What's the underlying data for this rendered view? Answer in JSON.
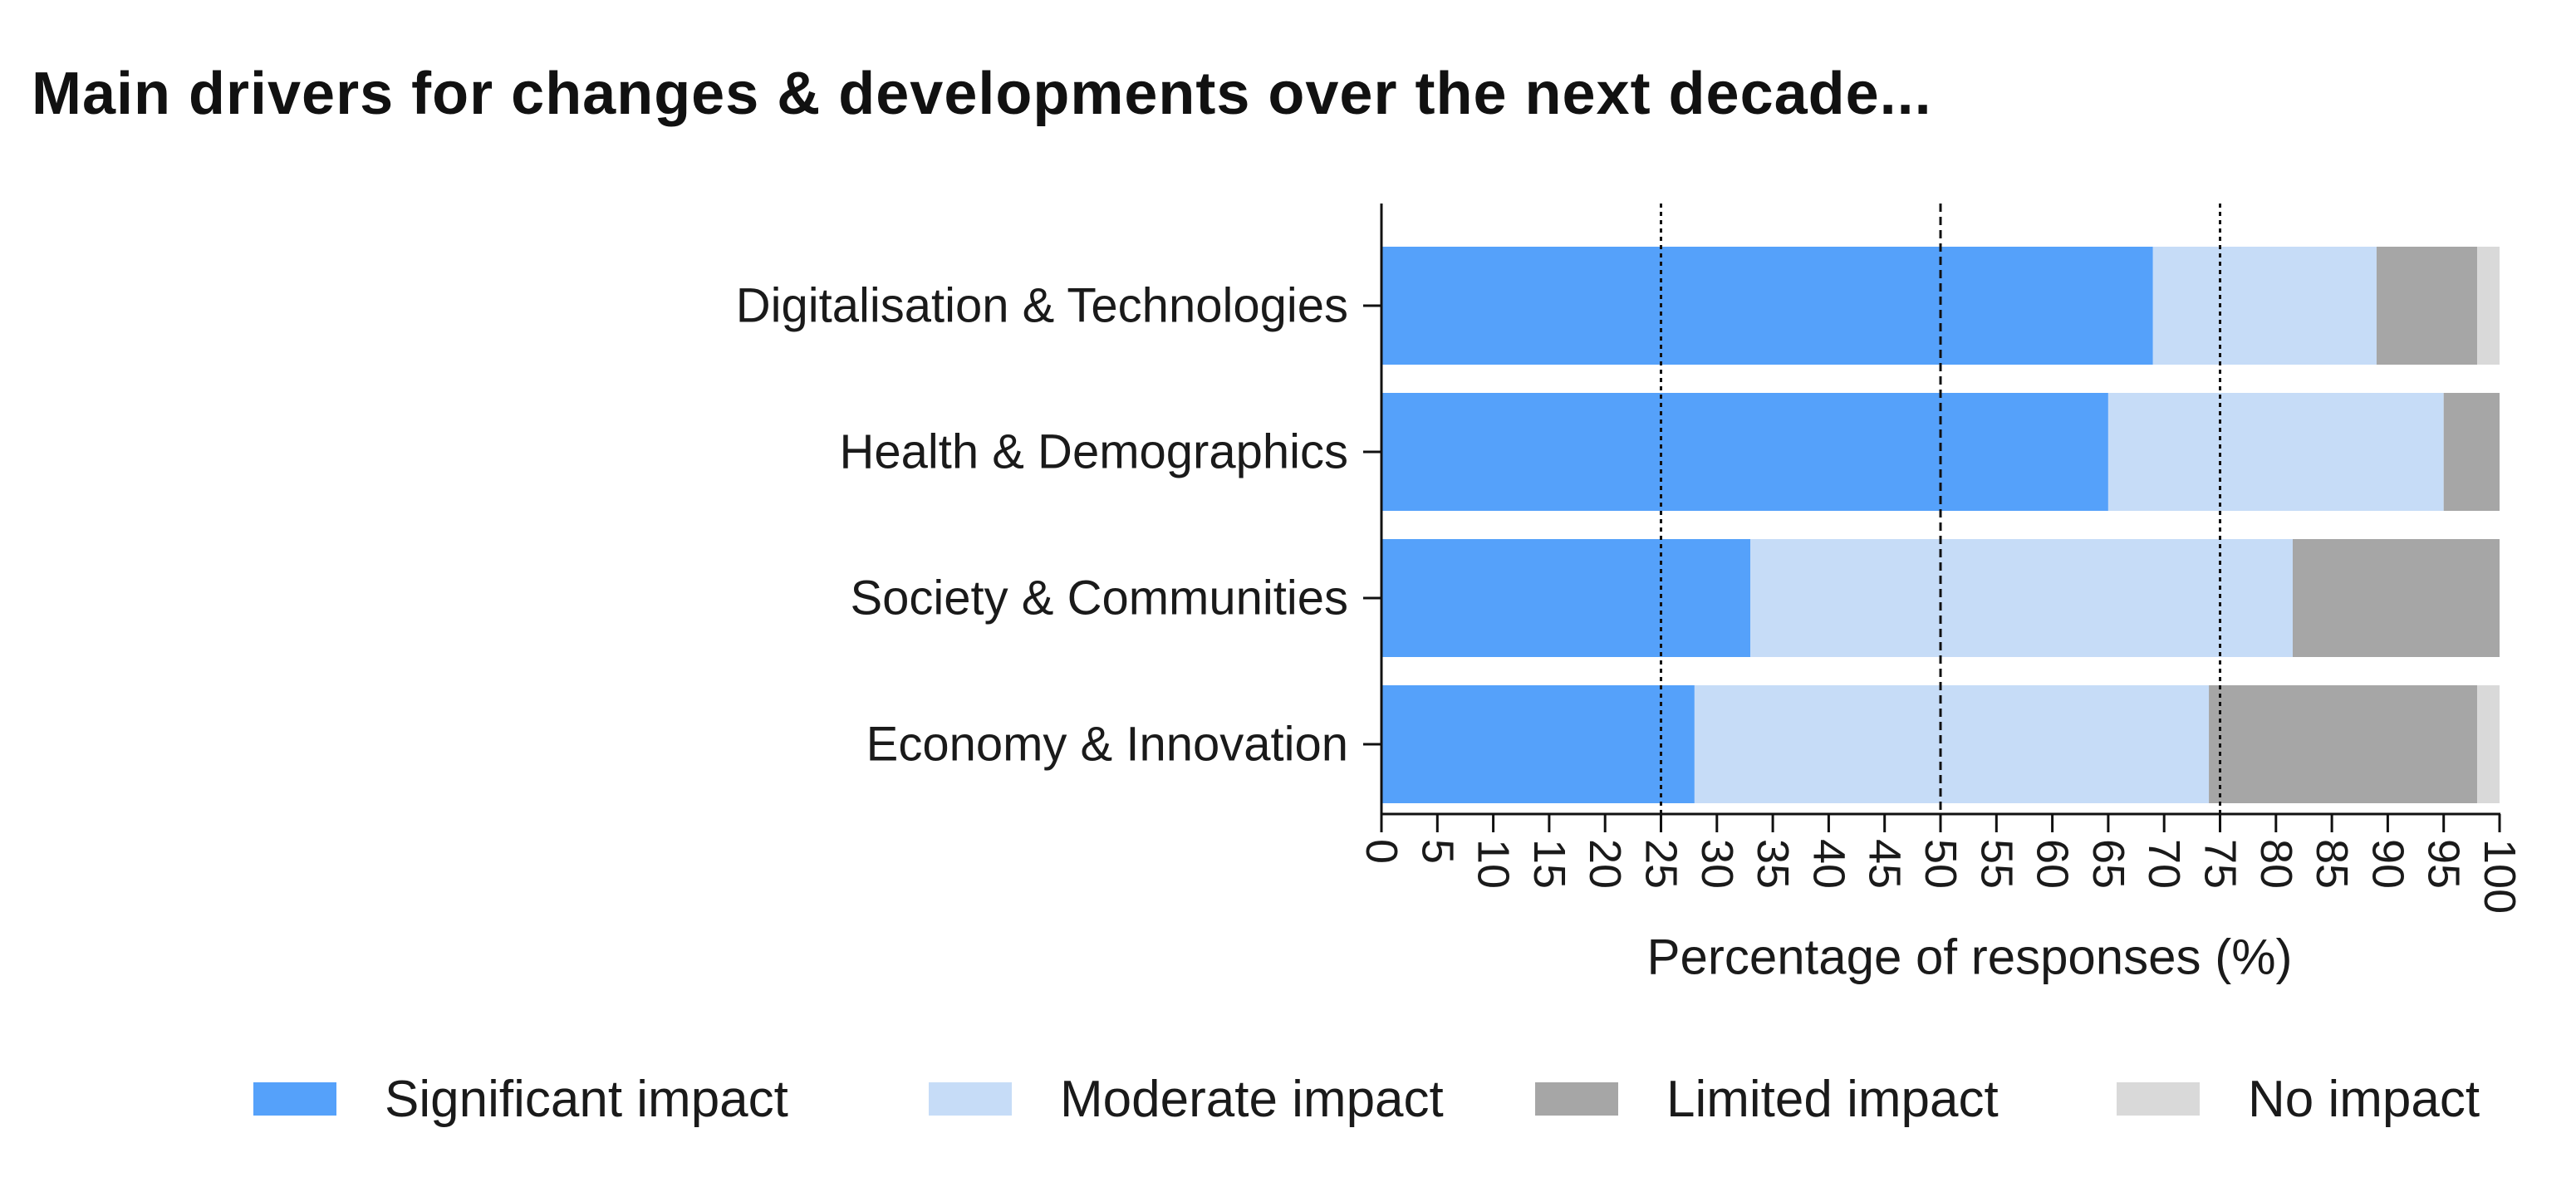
{
  "chart_data": {
    "type": "bar",
    "orientation": "horizontal",
    "stacked": true,
    "title": "Main drivers for changes & developments over the next decade...",
    "xlabel": "Percentage of responses (%)",
    "ylabel": "",
    "xlim": [
      0,
      100
    ],
    "x_ticks": [
      "0",
      "5",
      "10",
      "15",
      "20",
      "25",
      "30",
      "35",
      "40",
      "45",
      "50",
      "55",
      "60",
      "65",
      "70",
      "75",
      "80",
      "85",
      "90",
      "95",
      "100"
    ],
    "reference_lines": [
      25,
      50,
      75
    ],
    "grid": false,
    "legend_position": "bottom",
    "categories": [
      "Digitalisation & Technologies",
      "Health & Demographics",
      "Society & Communities",
      "Economy & Innovation"
    ],
    "series": [
      {
        "name": "Significant impact",
        "color": "#55a1fa",
        "values": [
          69,
          65,
          33,
          28
        ]
      },
      {
        "name": "Moderate impact",
        "color": "#c6dcf7",
        "values": [
          20,
          30,
          48.5,
          46
        ]
      },
      {
        "name": "Limited impact",
        "color": "#a6a6a6",
        "values": [
          9,
          5,
          18.5,
          24
        ]
      },
      {
        "name": "No impact",
        "color": "#d9d9d9",
        "values": [
          2,
          0,
          0,
          2
        ]
      }
    ]
  }
}
